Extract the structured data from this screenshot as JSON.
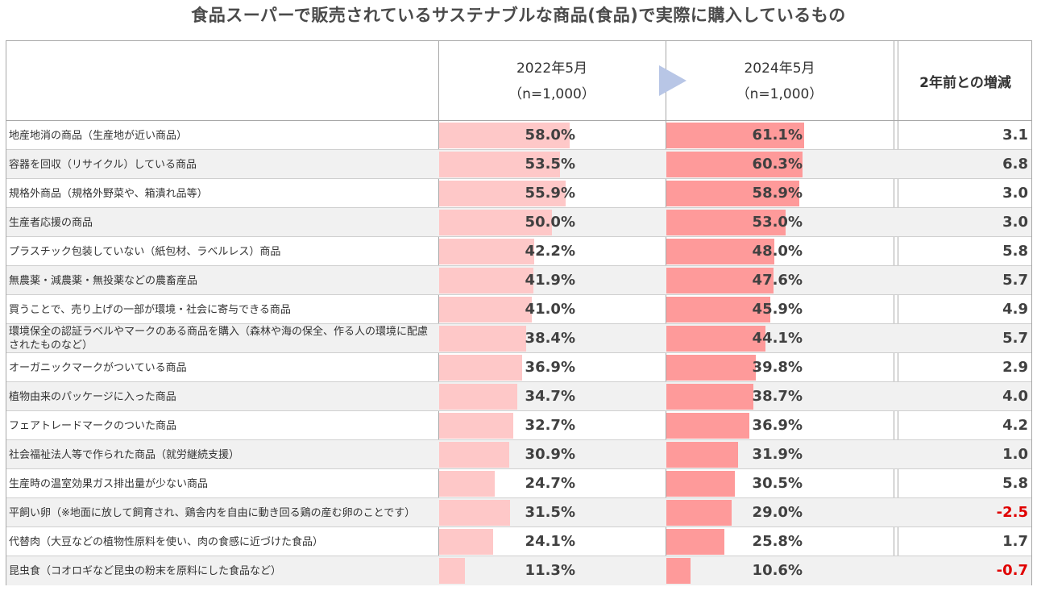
{
  "title": "食品スーパーで販売されているサステナブルな商品(食品)で実際に購入しているもの",
  "header": {
    "col_2022_line1": "2022年5月",
    "col_2022_line2": "（n=1,000）",
    "col_2024_line1": "2024年5月",
    "col_2024_line2": "（n=1,000）",
    "col_change": "2年前との増減"
  },
  "colors": {
    "bar_2022": "#fec8c8",
    "bar_2024": "#fe9a9a",
    "negative": "#e00000",
    "arrow": "#b8c6e6"
  },
  "chart_data": {
    "type": "bar",
    "title": "食品スーパーで販売されているサステナブルな商品(食品)で実際に購入しているもの",
    "unit": "%",
    "categories": [
      "地産地消の商品（生産地が近い商品）",
      "容器を回収（リサイクル）している商品",
      "規格外商品（規格外野菜や、箱潰れ品等）",
      "生産者応援の商品",
      "プラスチック包装していない（紙包材、ラベルレス）商品",
      "無農薬・減農薬・無投薬などの農畜産品",
      "買うことで、売り上げの一部が環境・社会に寄与できる商品",
      "環境保全の認証ラベルやマークのある商品を購入（森林や海の保全、作る人の環境に配慮されたものなど）",
      "オーガニックマークがついている商品",
      "植物由来のパッケージに入った商品",
      "フェアトレードマークのついた商品",
      "社会福祉法人等で作られた商品（就労継続支援）",
      "生産時の温室効果ガス排出量が少ない商品",
      "平飼い卵（※地面に放して飼育され、鶏舎内を自由に動き回る鶏の産む卵のことです）",
      "代替肉（大豆などの植物性原料を使い、肉の食感に近づけた食品）",
      "昆虫食（コオロギなど昆虫の粉末を原料にした食品など）"
    ],
    "series": [
      {
        "name": "2022年5月",
        "values": [
          58.0,
          53.5,
          55.9,
          50.0,
          42.2,
          41.9,
          41.0,
          38.4,
          36.9,
          34.7,
          32.7,
          30.9,
          24.7,
          31.5,
          24.1,
          11.3
        ]
      },
      {
        "name": "2024年5月",
        "values": [
          61.1,
          60.3,
          58.9,
          53.0,
          48.0,
          47.6,
          45.9,
          44.1,
          39.8,
          38.7,
          36.9,
          31.9,
          30.5,
          29.0,
          25.8,
          10.6
        ]
      }
    ],
    "change": [
      "3.1",
      "6.8",
      "3.0",
      "3.0",
      "5.8",
      "5.7",
      "4.9",
      "5.7",
      "2.9",
      "4.0",
      "4.2",
      "1.0",
      "5.8",
      "-2.5",
      "1.7",
      "-0.7"
    ],
    "xlim": [
      0,
      100
    ]
  }
}
